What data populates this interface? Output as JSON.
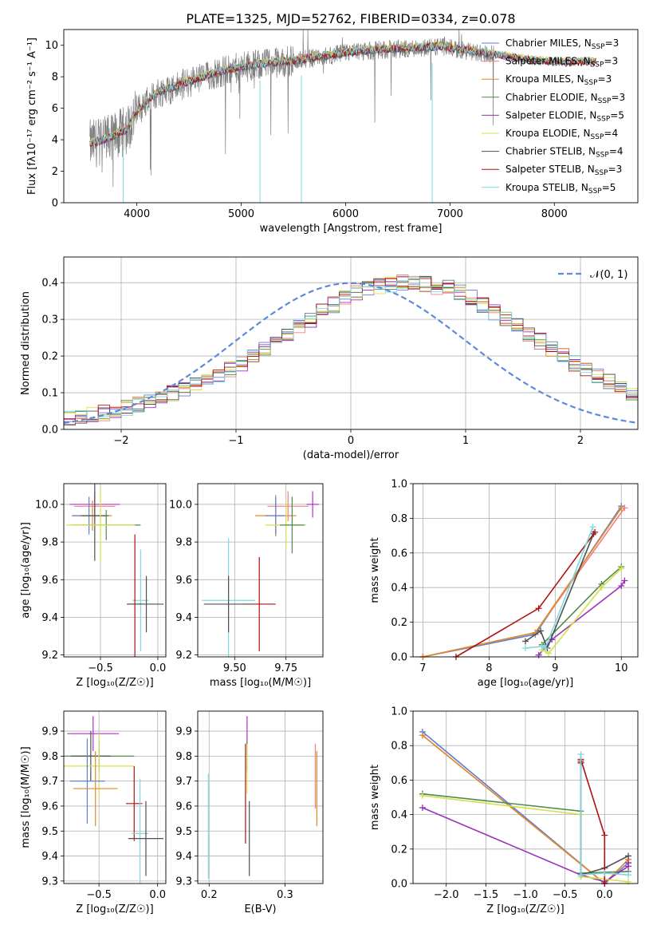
{
  "figure": {
    "title": "PLATE=1325, MJD=52762, FIBERID=0334, z=0.078"
  },
  "chart_data": [
    {
      "id": "spectrum",
      "type": "line",
      "xlabel": "wavelength [Angstrom, rest frame]",
      "ylabel": "Flux [fλ10⁻¹⁷ erg cm⁻² s⁻¹ A⁻¹]",
      "xlim": [
        3300,
        8800
      ],
      "ylim": [
        0,
        11
      ],
      "xticks": [
        4000,
        5000,
        6000,
        7000,
        8000
      ],
      "yticks": [
        0,
        2,
        4,
        6,
        8,
        10
      ],
      "data_color": "#808080",
      "legend_position": "right",
      "legend": [
        {
          "label": "Chabrier MILES, N",
          "sub": "SSP",
          "suffix": "=3",
          "color": "#5b7fd1"
        },
        {
          "label": "Salpeter MILES, N",
          "sub": "SSP",
          "suffix": "=3",
          "color": "#f08080"
        },
        {
          "label": "Kroupa MILES, N",
          "sub": "SSP",
          "suffix": "=3",
          "color": "#e08a2c"
        },
        {
          "label": "Chabrier ELODIE, N",
          "sub": "SSP",
          "suffix": "=3",
          "color": "#4f8a4f"
        },
        {
          "label": "Salpeter ELODIE, N",
          "sub": "SSP",
          "suffix": "=5",
          "color": "#9b30b8"
        },
        {
          "label": "Kroupa ELODIE, N",
          "sub": "SSP",
          "suffix": "=4",
          "color": "#d4e04a"
        },
        {
          "label": "Chabrier STELIB, N",
          "sub": "SSP",
          "suffix": "=4",
          "color": "#505050"
        },
        {
          "label": "Salpeter STELIB, N",
          "sub": "SSP",
          "suffix": "=3",
          "color": "#b01010"
        },
        {
          "label": "Kroupa STELIB, N",
          "sub": "SSP",
          "suffix": "=5",
          "color": "#7fd8e0"
        }
      ],
      "continuum": {
        "x": [
          3550,
          3700,
          3900,
          4000,
          4200,
          4400,
          4600,
          4800,
          5000,
          5200,
          5500,
          5800,
          6000,
          6300,
          6600,
          6900,
          7200,
          7500,
          7800,
          8100,
          8400
        ],
        "y": [
          3.7,
          4.0,
          4.6,
          5.8,
          7.0,
          7.4,
          7.9,
          8.3,
          8.6,
          8.8,
          9.0,
          9.3,
          9.5,
          9.7,
          9.8,
          9.9,
          9.6,
          9.3,
          9.0,
          8.9,
          8.9
        ]
      }
    },
    {
      "id": "residual-hist",
      "type": "histogram",
      "xlabel": "(data-model)/error",
      "ylabel": "Normed distribution",
      "xlim": [
        -2.5,
        2.5
      ],
      "ylim": [
        0,
        0.47
      ],
      "xticks": [
        -2,
        -1,
        0,
        1,
        2
      ],
      "yticks": [
        0.0,
        0.1,
        0.2,
        0.3,
        0.4
      ],
      "grid": true,
      "legend_position": "top-right",
      "legend": [
        {
          "label": "𝒩(0, 1)",
          "color": "#5b8bd9",
          "style": "dashed"
        }
      ],
      "bin_edges_start": -2.5,
      "bin_width": 0.1,
      "base_values": [
        0.03,
        0.035,
        0.04,
        0.045,
        0.05,
        0.06,
        0.07,
        0.08,
        0.09,
        0.1,
        0.11,
        0.12,
        0.135,
        0.15,
        0.165,
        0.18,
        0.2,
        0.22,
        0.24,
        0.26,
        0.28,
        0.3,
        0.32,
        0.34,
        0.36,
        0.375,
        0.385,
        0.39,
        0.395,
        0.4,
        0.4,
        0.395,
        0.39,
        0.385,
        0.375,
        0.36,
        0.34,
        0.32,
        0.3,
        0.28,
        0.26,
        0.24,
        0.22,
        0.2,
        0.18,
        0.16,
        0.145,
        0.13,
        0.115,
        0.1,
        0.09,
        0.08,
        0.07,
        0.06,
        0.05,
        0.045,
        0.04,
        0.035,
        0.03,
        0.025
      ]
    },
    {
      "id": "age-vs-Z",
      "type": "errorbar",
      "xlabel": "Z [log₁₀(Z/Z☉)]",
      "ylabel": "age  [log₁₀(age/yr)]",
      "xlim": [
        -0.82,
        0.07
      ],
      "ylim": [
        9.19,
        10.11
      ],
      "xticks": [
        -0.5,
        0.0
      ],
      "yticks": [
        9.2,
        9.4,
        9.6,
        9.8,
        10.0
      ],
      "points": [
        {
          "x": -0.55,
          "y": 10.0,
          "xerr": 0.22,
          "yerr": 0.07,
          "color": "#b030c0"
        },
        {
          "x": -0.55,
          "y": 9.99,
          "xerr": 0.18,
          "yerr": 0.08,
          "color": "#f08080"
        },
        {
          "x": -0.57,
          "y": 9.94,
          "xerr": 0.17,
          "yerr": 0.08,
          "color": "#e08a2c"
        },
        {
          "x": -0.6,
          "y": 9.94,
          "xerr": 0.15,
          "yerr": 0.1,
          "color": "#5b7fd1"
        },
        {
          "x": -0.55,
          "y": 9.94,
          "xerr": 0.12,
          "yerr": 0.24,
          "color": "#505050"
        },
        {
          "x": -0.45,
          "y": 9.89,
          "xerr": 0.3,
          "yerr": 0.08,
          "color": "#4f8a4f"
        },
        {
          "x": -0.5,
          "y": 9.89,
          "xerr": 0.3,
          "yerr": 0.2,
          "color": "#d4e04a"
        },
        {
          "x": -0.15,
          "y": 9.49,
          "xerr": 0.07,
          "yerr": 0.27,
          "color": "#7fd8e0"
        },
        {
          "x": -0.2,
          "y": 9.47,
          "xerr": 0.07,
          "yerr": 0.37,
          "color": "#b01010"
        },
        {
          "x": -0.1,
          "y": 9.47,
          "xerr": 0.15,
          "yerr": 0.15,
          "color": "#505050"
        }
      ]
    },
    {
      "id": "age-vs-mass",
      "type": "errorbar",
      "xlabel": "mass [log₁₀(M/M☉)]",
      "ylabel": "",
      "xlim": [
        9.32,
        9.93
      ],
      "ylim": [
        9.19,
        10.11
      ],
      "xticks": [
        9.5,
        9.75
      ],
      "yticks": [
        9.2,
        9.4,
        9.6,
        9.8,
        10.0
      ],
      "points": [
        {
          "x": 9.88,
          "y": 10.0,
          "xerr": 0.03,
          "yerr": 0.07,
          "color": "#b030c0"
        },
        {
          "x": 9.76,
          "y": 9.99,
          "xerr": 0.1,
          "yerr": 0.08,
          "color": "#f08080"
        },
        {
          "x": 9.7,
          "y": 9.94,
          "xerr": 0.1,
          "yerr": 0.11,
          "color": "#e08a2c"
        },
        {
          "x": 9.7,
          "y": 9.94,
          "xerr": 0.05,
          "yerr": 0.1,
          "color": "#5b7fd1"
        },
        {
          "x": 9.75,
          "y": 9.89,
          "xerr": 0.1,
          "yerr": 0.12,
          "color": "#d4e04a"
        },
        {
          "x": 9.78,
          "y": 9.89,
          "xerr": 0.06,
          "yerr": 0.15,
          "color": "#4f8a4f"
        },
        {
          "x": 9.47,
          "y": 9.49,
          "xerr": 0.13,
          "yerr": 0.33,
          "color": "#7fd8e0"
        },
        {
          "x": 9.62,
          "y": 9.47,
          "xerr": 0.08,
          "yerr": 0.25,
          "color": "#b01010"
        },
        {
          "x": 9.47,
          "y": 9.47,
          "xerr": 0.12,
          "yerr": 0.15,
          "color": "#505050"
        }
      ]
    },
    {
      "id": "mass-weight-vs-age",
      "type": "line",
      "xlabel": "age  [log₁₀(age/yr)]",
      "ylabel": "mass weight",
      "xlim": [
        6.85,
        10.25
      ],
      "ylim": [
        0,
        1
      ],
      "xticks": [
        7,
        8,
        9,
        10
      ],
      "yticks": [
        0.0,
        0.2,
        0.4,
        0.6,
        0.8,
        1.0
      ],
      "grid": true,
      "series": [
        {
          "color": "#5b7fd1",
          "x": [
            7.0,
            8.7,
            10.0
          ],
          "y": [
            0.0,
            0.13,
            0.87
          ]
        },
        {
          "color": "#f08080",
          "x": [
            7.0,
            8.7,
            10.05
          ],
          "y": [
            0.0,
            0.14,
            0.86
          ]
        },
        {
          "color": "#e08a2c",
          "x": [
            7.0,
            8.7,
            10.0
          ],
          "y": [
            0.0,
            0.14,
            0.86
          ]
        },
        {
          "color": "#4f8a4f",
          "x": [
            8.8,
            9.7,
            10.0
          ],
          "y": [
            0.07,
            0.42,
            0.52
          ]
        },
        {
          "color": "#9b30b8",
          "x": [
            8.75,
            8.95,
            10.0,
            10.05
          ],
          "y": [
            0.01,
            0.1,
            0.41,
            0.44
          ]
        },
        {
          "color": "#d4e04a",
          "x": [
            8.8,
            8.9,
            9.7,
            10.0
          ],
          "y": [
            0.04,
            0.02,
            0.4,
            0.51
          ]
        },
        {
          "color": "#505050",
          "x": [
            8.55,
            8.78,
            8.88,
            9.58
          ],
          "y": [
            0.09,
            0.15,
            0.05,
            0.71
          ]
        },
        {
          "color": "#b01010",
          "x": [
            7.5,
            8.75,
            9.6
          ],
          "y": [
            0.0,
            0.28,
            0.72
          ]
        },
        {
          "color": "#7fd8e0",
          "x": [
            8.55,
            8.8,
            8.85,
            9.57
          ],
          "y": [
            0.05,
            0.06,
            0.05,
            0.75
          ]
        }
      ]
    },
    {
      "id": "mass-vs-Z",
      "type": "errorbar",
      "xlabel": "Z [log₁₀(Z/Z☉)]",
      "ylabel": "mass [log₁₀(M/M☉)]",
      "xlim": [
        -0.8,
        0.07
      ],
      "ylim": [
        9.29,
        9.98
      ],
      "xticks": [
        -0.5,
        0.0
      ],
      "yticks": [
        9.3,
        9.4,
        9.5,
        9.6,
        9.7,
        9.8,
        9.9
      ],
      "points": [
        {
          "x": -0.55,
          "y": 9.89,
          "xerr": 0.22,
          "yerr": 0.07,
          "color": "#b030c0"
        },
        {
          "x": -0.5,
          "y": 9.8,
          "xerr": 0.3,
          "yerr": 0.06,
          "color": "#4f8a4f"
        },
        {
          "x": -0.57,
          "y": 9.8,
          "xerr": 0.17,
          "yerr": 0.1,
          "color": "#505050"
        },
        {
          "x": -0.5,
          "y": 9.76,
          "xerr": 0.3,
          "yerr": 0.13,
          "color": "#d4e04a"
        },
        {
          "x": -0.6,
          "y": 9.7,
          "xerr": 0.15,
          "yerr": 0.17,
          "color": "#5b7fd1"
        },
        {
          "x": -0.53,
          "y": 9.67,
          "xerr": 0.19,
          "yerr": 0.15,
          "color": "#e08a2c"
        },
        {
          "x": -0.2,
          "y": 9.61,
          "xerr": 0.07,
          "yerr": 0.15,
          "color": "#b01010"
        },
        {
          "x": -0.15,
          "y": 9.49,
          "xerr": 0.07,
          "yerr": 0.22,
          "color": "#7fd8e0"
        },
        {
          "x": -0.1,
          "y": 9.47,
          "xerr": 0.15,
          "yerr": 0.15,
          "color": "#505050"
        }
      ]
    },
    {
      "id": "mass-vs-ebv",
      "type": "errorbar",
      "xlabel": "E(B-V)",
      "ylabel": "",
      "xlim": [
        0.185,
        0.35
      ],
      "ylim": [
        9.29,
        9.98
      ],
      "xticks": [
        0.2,
        0.3
      ],
      "yticks": [
        9.3,
        9.4,
        9.5,
        9.6,
        9.7,
        9.8,
        9.9
      ],
      "points": [
        {
          "x": 0.199,
          "y": 9.52,
          "yerr": 0.21,
          "color": "#7fd8e0"
        },
        {
          "x": 0.25,
          "y": 9.89,
          "yerr": 0.07,
          "color": "#b030c0"
        },
        {
          "x": 0.248,
          "y": 9.65,
          "yerr": 0.2,
          "color": "#b01010"
        },
        {
          "x": 0.253,
          "y": 9.47,
          "yerr": 0.15,
          "color": "#505050"
        },
        {
          "x": 0.25,
          "y": 9.8,
          "yerr": 0.06,
          "color": "#4f8a4f"
        },
        {
          "x": 0.25,
          "y": 9.75,
          "yerr": 0.1,
          "color": "#d4e04a"
        },
        {
          "x": 0.34,
          "y": 9.72,
          "yerr": 0.13,
          "color": "#f08080"
        },
        {
          "x": 0.342,
          "y": 9.67,
          "yerr": 0.15,
          "color": "#e08a2c"
        }
      ]
    },
    {
      "id": "mass-weight-vs-Z",
      "type": "line",
      "xlabel": "Z [log₁₀(Z/Z☉)]",
      "ylabel": "mass weight",
      "xlim": [
        -2.42,
        0.42
      ],
      "ylim": [
        0,
        1
      ],
      "xticks": [
        -2.0,
        -1.5,
        -1.0,
        -0.5,
        0.0
      ],
      "yticks": [
        0.0,
        0.2,
        0.4,
        0.6,
        0.8,
        1.0
      ],
      "grid": true,
      "series": [
        {
          "color": "#5b7fd1",
          "x": [
            -2.3,
            0.0,
            0.3
          ],
          "y": [
            0.88,
            0.0,
            0.12
          ]
        },
        {
          "color": "#f08080",
          "x": [
            -2.3,
            0.0,
            0.3
          ],
          "y": [
            0.86,
            0.0,
            0.14
          ]
        },
        {
          "color": "#e08a2c",
          "x": [
            -2.3,
            0.0,
            0.3
          ],
          "y": [
            0.86,
            0.0,
            0.14
          ]
        },
        {
          "color": "#4f8a4f",
          "x": [
            -2.3,
            -0.3,
            -0.3,
            0.3
          ],
          "y": [
            0.52,
            0.42,
            0.06,
            0.07
          ]
        },
        {
          "color": "#9b30b8",
          "x": [
            -2.3,
            -0.3,
            0.0,
            0.3,
            0.3
          ],
          "y": [
            0.44,
            0.05,
            0.01,
            0.1,
            0.12
          ]
        },
        {
          "color": "#d4e04a",
          "x": [
            -2.3,
            -0.3,
            -0.3,
            0.3
          ],
          "y": [
            0.51,
            0.4,
            0.04,
            0.01
          ]
        },
        {
          "color": "#505050",
          "x": [
            -0.3,
            -0.3,
            0.0,
            0.3
          ],
          "y": [
            0.71,
            0.05,
            0.09,
            0.16
          ]
        },
        {
          "color": "#b01010",
          "x": [
            -0.3,
            -0.3,
            0.0,
            0.0
          ],
          "y": [
            0.7,
            0.72,
            0.28,
            0.0
          ]
        },
        {
          "color": "#7fd8e0",
          "x": [
            -0.3,
            -0.3,
            0.0,
            0.3
          ],
          "y": [
            0.75,
            0.05,
            0.06,
            0.05
          ]
        }
      ]
    }
  ]
}
